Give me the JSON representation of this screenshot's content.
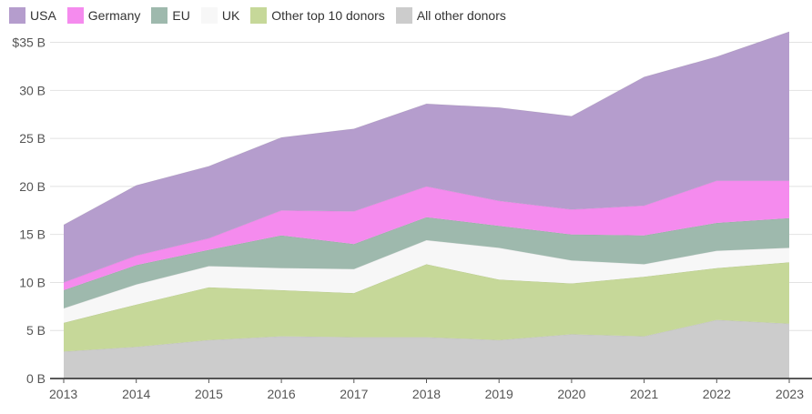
{
  "chart_data": {
    "type": "area",
    "stacked": true,
    "title": "",
    "xlabel": "",
    "ylabel": "",
    "ylim": [
      0,
      36
    ],
    "y_ticks": [
      0,
      5,
      10,
      15,
      20,
      25,
      30,
      35
    ],
    "y_tick_labels": [
      "0 B",
      "5 B",
      "10 B",
      "15 B",
      "20 B",
      "25 B",
      "30 B",
      "$35 B"
    ],
    "x": [
      "2013",
      "2014",
      "2015",
      "2016",
      "2017",
      "2018",
      "2019",
      "2020",
      "2021",
      "2022",
      "2023"
    ],
    "legend_position": "top-left",
    "grid": true,
    "series": [
      {
        "name": "All other donors",
        "color": "#cccccc",
        "values": [
          2.8,
          3.3,
          4.0,
          4.4,
          4.3,
          4.3,
          4.0,
          4.6,
          4.4,
          6.1,
          5.7
        ]
      },
      {
        "name": "Other top 10 donors",
        "color": "#c6d899",
        "values": [
          3.0,
          4.4,
          5.5,
          4.8,
          4.6,
          7.6,
          6.3,
          5.3,
          6.2,
          5.4,
          6.4
        ]
      },
      {
        "name": "UK",
        "color": "#f7f7f7",
        "values": [
          1.5,
          2.1,
          2.2,
          2.3,
          2.5,
          2.5,
          3.3,
          2.4,
          1.3,
          1.8,
          1.5
        ]
      },
      {
        "name": "EU",
        "color": "#9eb9ad",
        "values": [
          1.9,
          2.0,
          1.7,
          3.4,
          2.6,
          2.4,
          2.3,
          2.7,
          3.0,
          2.9,
          3.1
        ]
      },
      {
        "name": "Germany",
        "color": "#f58bee",
        "values": [
          0.8,
          1.0,
          1.2,
          2.6,
          3.4,
          3.2,
          2.6,
          2.6,
          3.1,
          4.4,
          3.9
        ]
      },
      {
        "name": "USA",
        "color": "#b59dcd",
        "values": [
          6.0,
          7.3,
          7.5,
          7.6,
          8.6,
          8.6,
          9.7,
          9.7,
          13.4,
          12.9,
          15.5
        ]
      }
    ],
    "legend_order": [
      "USA",
      "Germany",
      "EU",
      "UK",
      "Other top 10 donors",
      "All other donors"
    ]
  }
}
